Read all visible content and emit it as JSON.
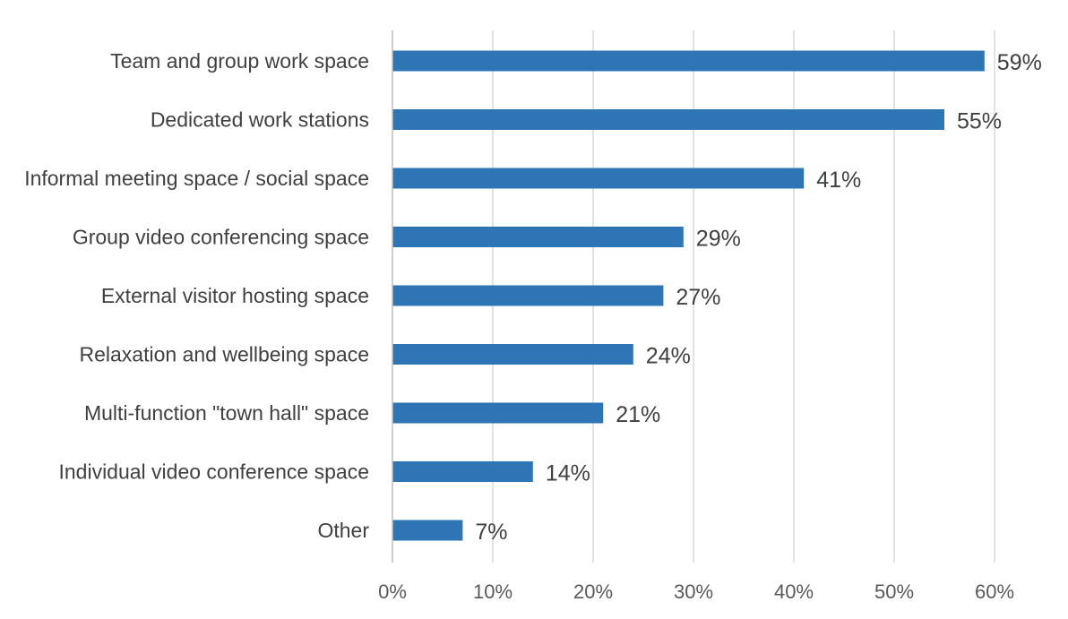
{
  "chart_data": {
    "type": "bar",
    "orientation": "horizontal",
    "categories": [
      "Team and group work space",
      "Dedicated work stations",
      "Informal meeting space / social space",
      "Group video conferencing space",
      "External visitor hosting space",
      "Relaxation and wellbeing space",
      "Multi-function \"town hall\" space",
      "Individual video conference space",
      "Other"
    ],
    "values": [
      59,
      55,
      41,
      29,
      27,
      24,
      21,
      14,
      7
    ],
    "data_labels": [
      "59%",
      "55%",
      "41%",
      "29%",
      "27%",
      "24%",
      "21%",
      "14%",
      "7%"
    ],
    "xlim": [
      0,
      60
    ],
    "x_ticks": [
      0,
      10,
      20,
      30,
      40,
      50,
      60
    ],
    "x_tick_labels": [
      "0%",
      "10%",
      "20%",
      "30%",
      "40%",
      "50%",
      "60%"
    ],
    "grid": "vertical",
    "legend": "none",
    "colors": {
      "bar": "#2E75B6",
      "grid": "#D9D9D9",
      "axis": "#BFBFBF"
    }
  }
}
